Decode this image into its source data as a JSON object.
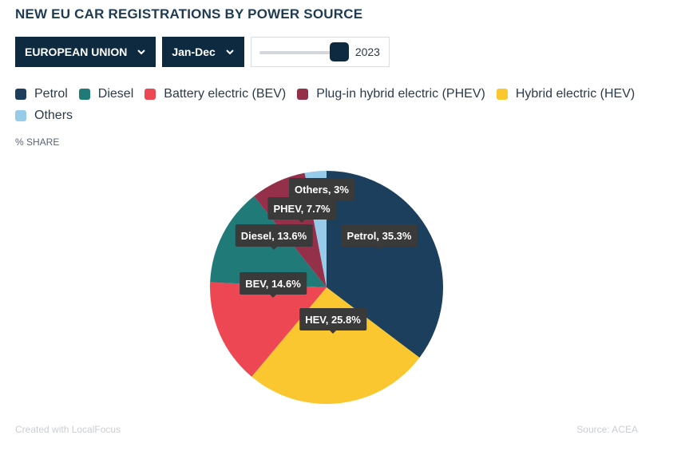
{
  "title": "NEW EU CAR REGISTRATIONS BY POWER SOURCE",
  "controls": {
    "region": "EUROPEAN UNION",
    "period": "Jan-Dec",
    "year": "2023"
  },
  "unit_label": "% SHARE",
  "footer": {
    "credit": "Created with LocalFocus",
    "source": "Source:  ACEA"
  },
  "colors": {
    "petrol": "#1b3f5c",
    "diesel": "#1f7a78",
    "bev": "#ee4754",
    "phev": "#94304a",
    "hev": "#fac731",
    "others": "#96cbea",
    "tooltip_bg": "#3a3a3a"
  },
  "legend": [
    {
      "label": "Petrol",
      "color": "#1b3f5c"
    },
    {
      "label": "Diesel",
      "color": "#1f7a78"
    },
    {
      "label": "Battery electric (BEV)",
      "color": "#ee4754"
    },
    {
      "label": "Plug-in hybrid electric (PHEV)",
      "color": "#94304a"
    },
    {
      "label": "Hybrid electric (HEV)",
      "color": "#fac731"
    },
    {
      "label": "Others",
      "color": "#96cbea"
    }
  ],
  "chart_data": {
    "type": "pie",
    "slices": [
      {
        "label": "Petrol, 35.3%",
        "name": "Petrol",
        "value": 35.3,
        "color": "#1b3f5c"
      },
      {
        "label": "HEV, 25.8%",
        "name": "HEV",
        "value": 25.8,
        "color": "#fac731"
      },
      {
        "label": "BEV, 14.6%",
        "name": "BEV",
        "value": 14.6,
        "color": "#ee4754"
      },
      {
        "label": "Diesel, 13.6%",
        "name": "Diesel",
        "value": 13.6,
        "color": "#1f7a78"
      },
      {
        "label": "PHEV, 7.7%",
        "name": "PHEV",
        "value": 7.7,
        "color": "#94304a"
      },
      {
        "label": "Others, 3%",
        "name": "Others",
        "value": 3,
        "color": "#96cbea"
      }
    ],
    "start": "12 o'clock",
    "direction": "clockwise"
  }
}
